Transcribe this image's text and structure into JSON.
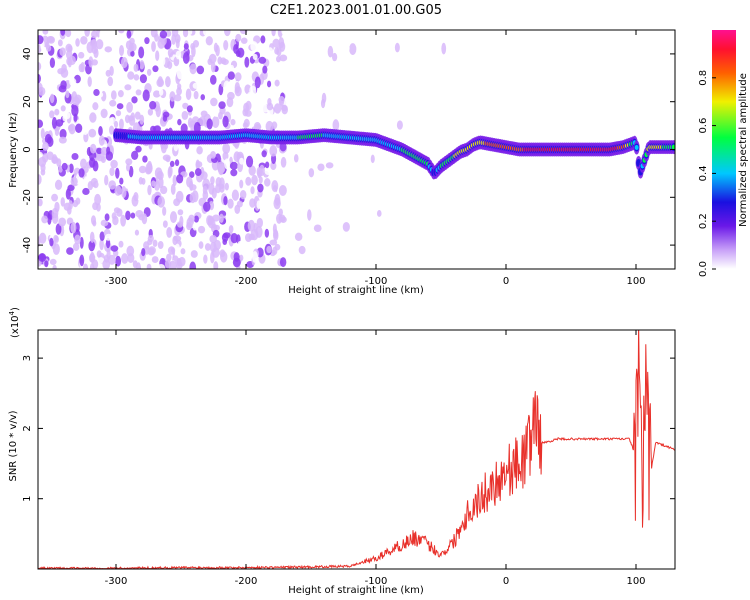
{
  "title": "C2E1.2023.001.01.00.G05",
  "colors": {
    "snr_line": "#e8302a",
    "axis": "#000000",
    "spectro_low": "#8c3cf0",
    "spectro_mid": "#1040e0",
    "spectro_high": "#ff2030"
  },
  "chart_data": [
    {
      "type": "heatmap",
      "title": "C2E1.2023.001.01.00.G05",
      "xlabel": "Height of straight line (km)",
      "ylabel": "Frequency (Hz)",
      "xlim": [
        -360,
        130
      ],
      "ylim": [
        -50,
        50
      ],
      "x_ticks": [
        -300,
        -200,
        -100,
        0,
        100
      ],
      "y_ticks": [
        -40,
        -20,
        0,
        20,
        40
      ],
      "colorbar": {
        "label": "Normalized spectral amplitude",
        "range": [
          0.0,
          1.0
        ],
        "ticks": [
          "0.0",
          "0.2",
          "0.4",
          "0.6",
          "0.8"
        ],
        "colormap": "rainbow (white-violet-blue-cyan-green-yellow-red-magenta)"
      },
      "ridge": {
        "description": "dominant frequency track vs height",
        "x": [
          -300,
          -280,
          -250,
          -220,
          -200,
          -180,
          -160,
          -140,
          -120,
          -100,
          -90,
          -80,
          -70,
          -60,
          -55,
          -50,
          -45,
          -40,
          -35,
          -30,
          -25,
          -20,
          -10,
          0,
          10,
          20,
          40,
          60,
          80,
          90,
          100,
          103,
          110,
          130
        ],
        "freq": [
          6,
          5,
          5,
          5,
          6,
          5,
          5,
          6,
          5,
          4,
          2,
          0,
          -3,
          -6,
          -10,
          -7,
          -5,
          -3,
          -1,
          0,
          2,
          3,
          2,
          1,
          0,
          0,
          0,
          0,
          0,
          1,
          3,
          -10,
          1,
          1
        ],
        "amplitude": [
          0.35,
          0.45,
          0.5,
          0.45,
          0.5,
          0.5,
          0.55,
          0.55,
          0.5,
          0.45,
          0.5,
          0.55,
          0.55,
          0.6,
          0.3,
          0.55,
          0.65,
          0.7,
          0.7,
          0.75,
          0.75,
          0.8,
          0.85,
          0.9,
          0.9,
          0.95,
          0.95,
          0.95,
          0.95,
          0.9,
          0.5,
          0.3,
          0.8,
          0.6
        ]
      }
    },
    {
      "type": "line",
      "xlabel": "Height of straight line (km)",
      "ylabel": "SNR (10 * v/v)",
      "y_scale_label": "(x10",
      "y_scale_exp": "4",
      "xlim": [
        -360,
        130
      ],
      "ylim": [
        0,
        3.4
      ],
      "x_ticks": [
        -300,
        -200,
        -100,
        0,
        100
      ],
      "y_ticks": [
        1,
        2,
        3
      ],
      "series": [
        {
          "x": [
            -360,
            -300,
            -250,
            -200,
            -150,
            -120,
            -110,
            -100,
            -90,
            -80,
            -70,
            -60,
            -50,
            -45,
            -40,
            -35,
            -30,
            -25,
            -20,
            -15,
            -10,
            -5,
            0,
            5,
            10,
            15,
            20,
            22,
            25,
            28,
            30,
            40,
            60,
            80,
            95,
            100,
            103,
            105,
            108,
            110,
            115,
            130
          ],
          "y": [
            0.01,
            0.01,
            0.02,
            0.02,
            0.03,
            0.04,
            0.1,
            0.15,
            0.25,
            0.35,
            0.45,
            0.35,
            0.2,
            0.3,
            0.4,
            0.6,
            0.8,
            0.9,
            1.0,
            1.1,
            1.2,
            1.3,
            1.4,
            1.45,
            1.5,
            1.6,
            1.9,
            2.3,
            1.9,
            1.8,
            1.8,
            1.85,
            1.85,
            1.85,
            1.85,
            1.6,
            3.2,
            1.0,
            2.5,
            1.2,
            1.8,
            1.7
          ]
        }
      ]
    }
  ]
}
